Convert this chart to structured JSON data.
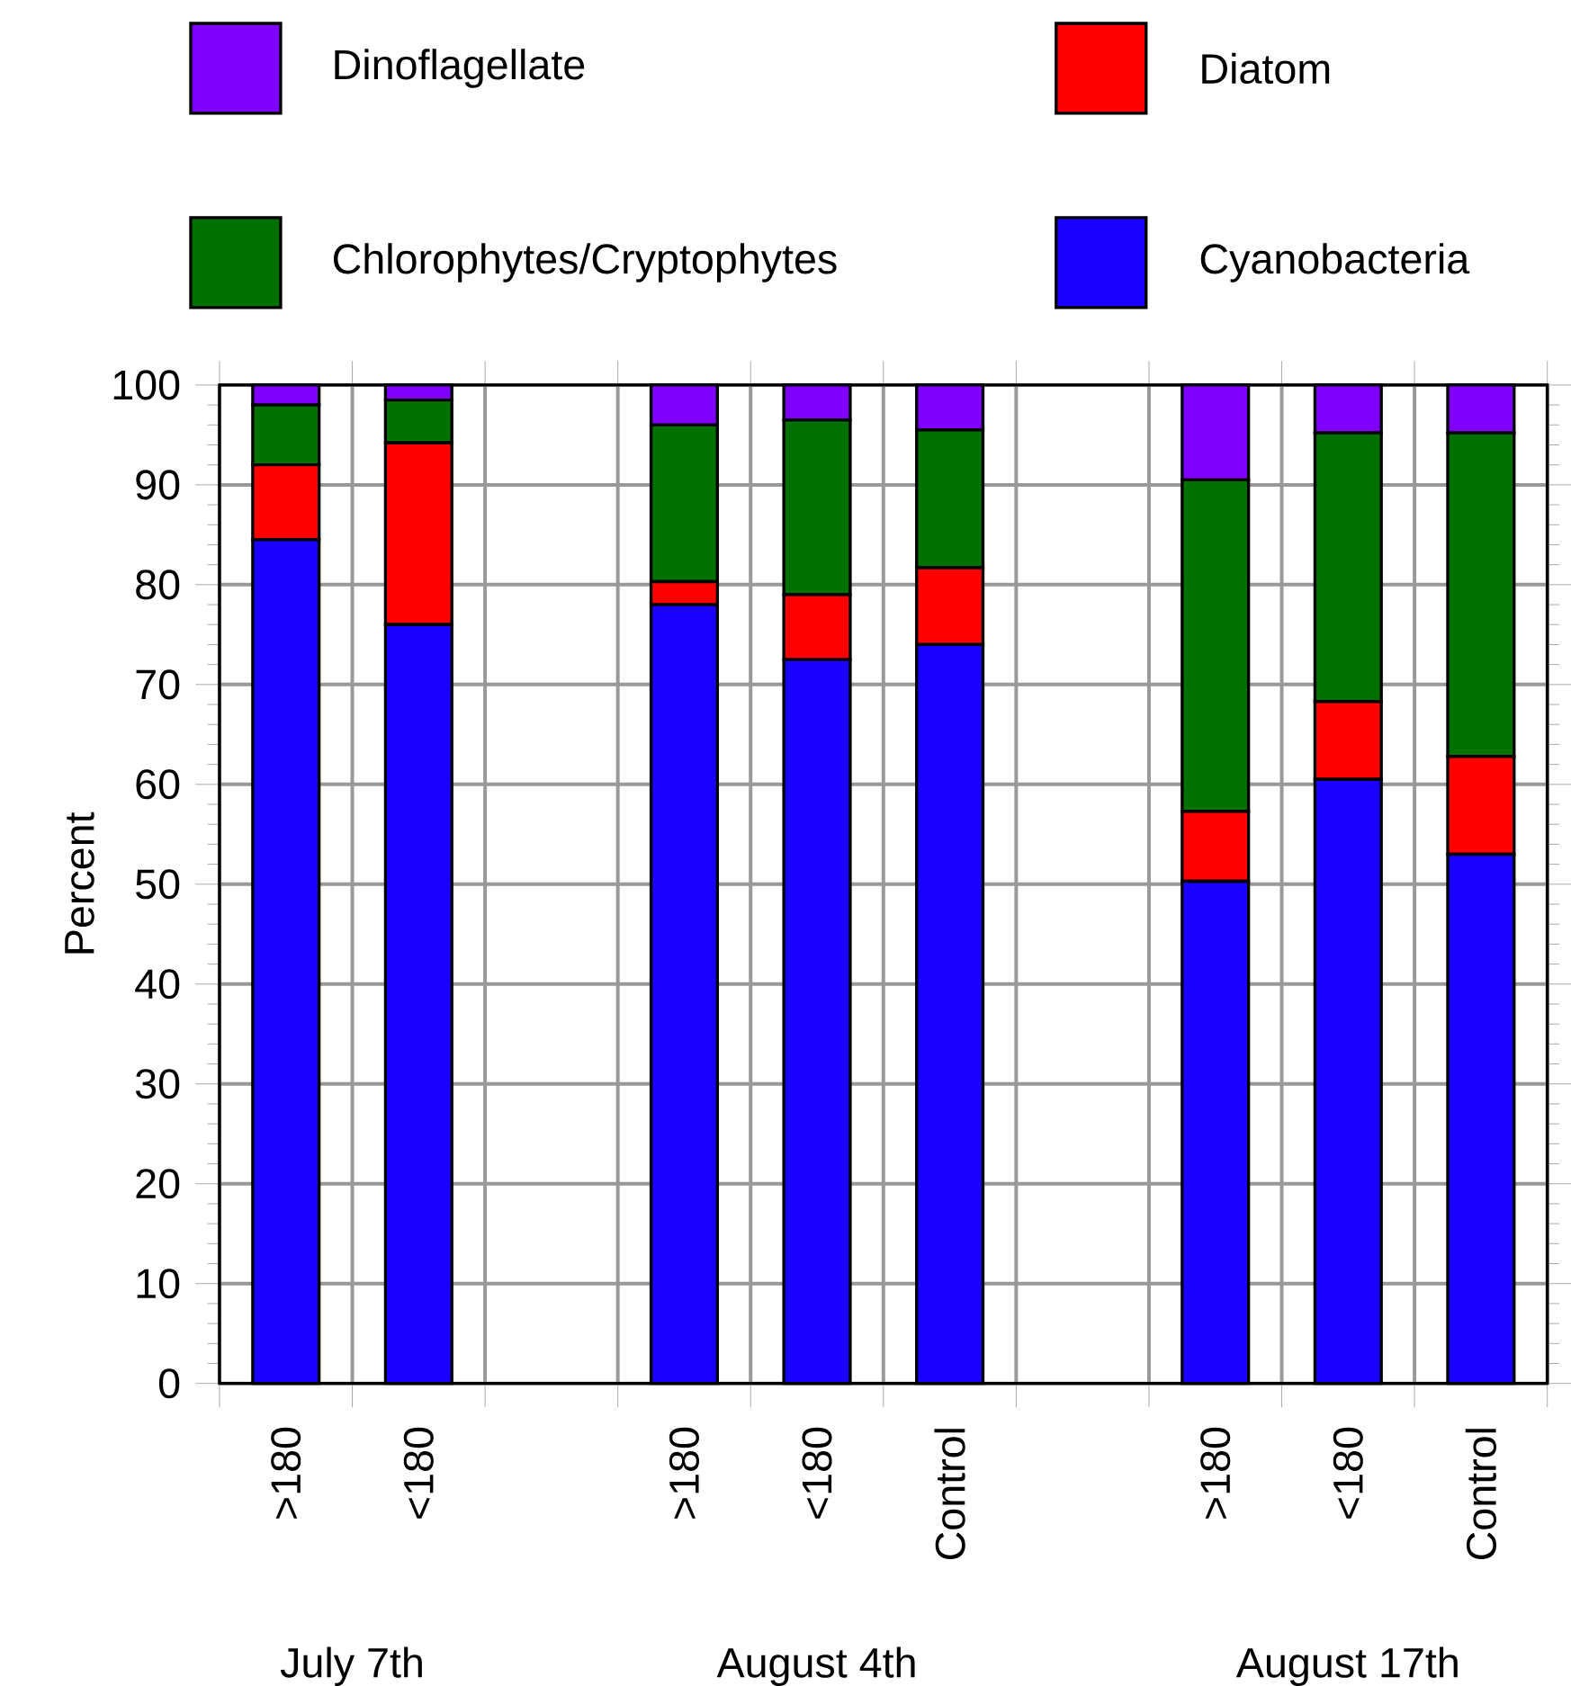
{
  "chart_data": {
    "type": "bar",
    "stacked": true,
    "ylabel": "Percent",
    "categories": [
      ">180",
      "<180",
      null,
      ">180",
      "<180",
      "Control",
      null,
      ">180",
      "<180",
      "Control"
    ],
    "series": [
      {
        "name": "Cyanobacteria",
        "color": "#1a00ff",
        "values": [
          84.5,
          76,
          null,
          78,
          72.5,
          74,
          null,
          50.3,
          60.5,
          53
        ]
      },
      {
        "name": "Diatom",
        "color": "#ff0000",
        "values": [
          7.5,
          18.2,
          null,
          2.3,
          6.5,
          7.7,
          null,
          7,
          7.8,
          9.8
        ]
      },
      {
        "name": "Chlorophytes/Cryptophytes",
        "color": "#007000",
        "values": [
          6,
          4.3,
          null,
          15.7,
          17.5,
          13.8,
          null,
          33.2,
          26.9,
          32.4
        ]
      },
      {
        "name": "Dinoflagellate",
        "color": "#8000ff",
        "values": [
          2,
          1.5,
          null,
          4,
          3.5,
          4.5,
          null,
          9.5,
          4.8,
          4.8
        ]
      }
    ],
    "ylim": [
      0,
      100
    ],
    "yticks": [
      0,
      10,
      20,
      30,
      40,
      50,
      60,
      70,
      80,
      90,
      100
    ],
    "grid": true,
    "legend": "top",
    "annotations": [
      "July 7th",
      "August 4th",
      "August 17th"
    ]
  }
}
